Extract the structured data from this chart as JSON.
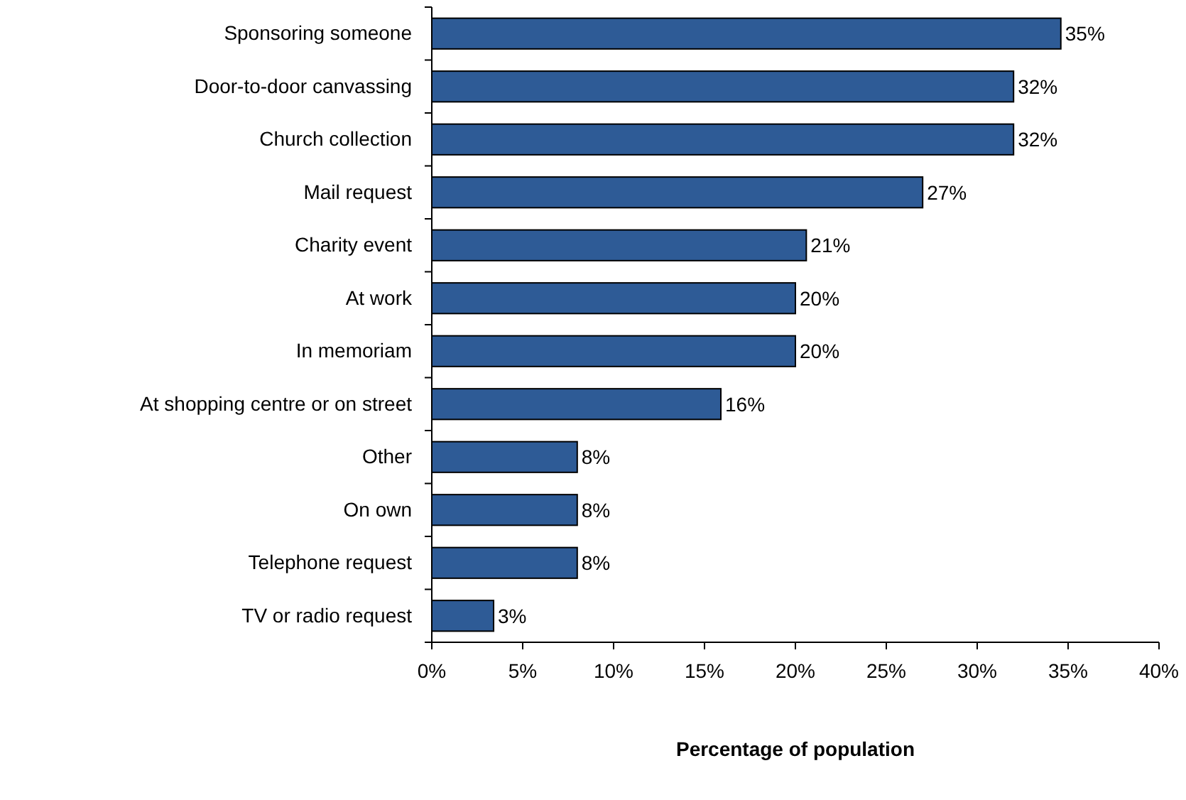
{
  "chart_data": {
    "type": "bar",
    "orientation": "horizontal",
    "xlabel": "Percentage of population",
    "categories": [
      "Sponsoring someone",
      "Door-to-door canvassing",
      "Church collection",
      "Mail request",
      "Charity event",
      "At work",
      "In memoriam",
      "At shopping centre or on street",
      "Other",
      "On own",
      "Telephone request",
      "TV or radio request"
    ],
    "values": [
      34.6,
      32,
      32,
      27,
      20.6,
      20,
      20,
      15.9,
      8,
      8,
      8,
      3.4
    ],
    "value_labels": [
      "35%",
      "32%",
      "32%",
      "27%",
      "21%",
      "20%",
      "20%",
      "16%",
      "8%",
      "8%",
      "8%",
      "3%"
    ],
    "color": "#2e5b96",
    "xlim": [
      0,
      40
    ],
    "xticks": [
      {
        "value": 0,
        "label": "0%"
      },
      {
        "value": 5,
        "label": "5%"
      },
      {
        "value": 10,
        "label": "10%"
      },
      {
        "value": 15,
        "label": "15%"
      },
      {
        "value": 20,
        "label": "20%"
      },
      {
        "value": 25,
        "label": "25%"
      },
      {
        "value": 30,
        "label": "30%"
      },
      {
        "value": 35,
        "label": "35%"
      },
      {
        "value": 40,
        "label": "40%"
      }
    ],
    "grid": false
  }
}
